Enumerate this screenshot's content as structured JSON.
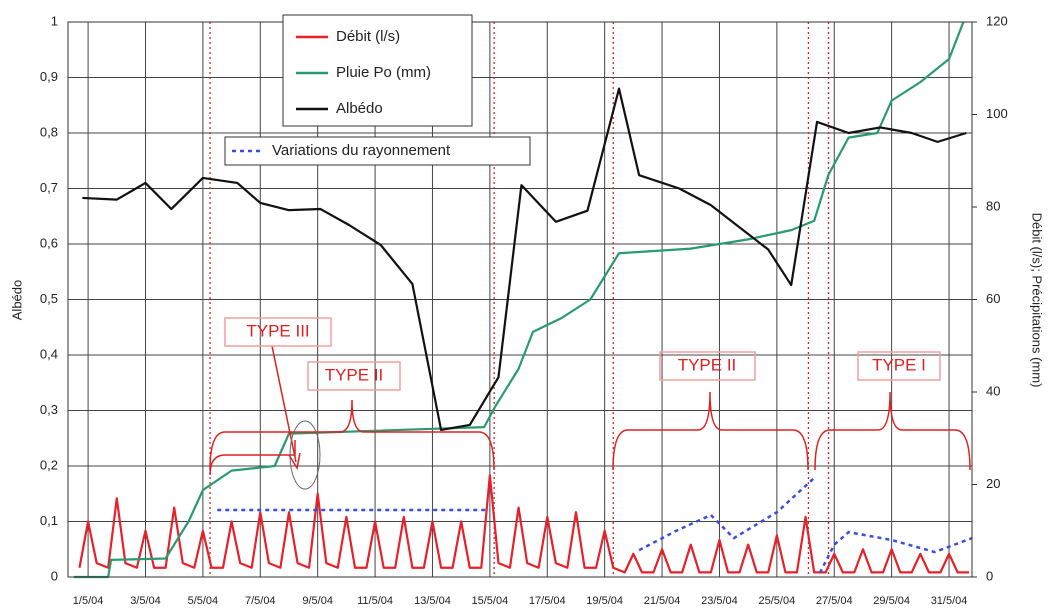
{
  "chart_data": {
    "type": "line",
    "ylabel": "Albédo",
    "y2label": "Débit (l/s); Précipitations (mm)",
    "xlim": [
      0.3,
      31.8
    ],
    "xticks": [
      {
        "value": 1,
        "label": "1/5/04"
      },
      {
        "value": 3,
        "label": "3/5/04"
      },
      {
        "value": 5,
        "label": "5/5/04"
      },
      {
        "value": 7,
        "label": "7/5/04"
      },
      {
        "value": 9,
        "label": "9/5/04"
      },
      {
        "value": 11,
        "label": "11/5/04"
      },
      {
        "value": 13,
        "label": "13/5/04"
      },
      {
        "value": 15,
        "label": "15/5/04"
      },
      {
        "value": 17,
        "label": "17/5/04"
      },
      {
        "value": 19,
        "label": "19/5/04"
      },
      {
        "value": 21,
        "label": "21/5/04"
      },
      {
        "value": 23,
        "label": "23/5/04"
      },
      {
        "value": 25,
        "label": "25/5/04"
      },
      {
        "value": 27,
        "label": "27/5/04"
      },
      {
        "value": 29,
        "label": "29/5/04"
      },
      {
        "value": 31,
        "label": "31/5/04"
      }
    ],
    "ylim": [
      0,
      1
    ],
    "yticks": [
      0,
      {
        "value": 0.1,
        "label": "0,1"
      },
      {
        "value": 0.2,
        "label": "0,2"
      },
      {
        "value": 0.3,
        "label": "0,3"
      },
      {
        "value": 0.4,
        "label": "0,4"
      },
      {
        "value": 0.5,
        "label": "0,5"
      },
      {
        "value": 0.6,
        "label": "0,6"
      },
      {
        "value": 0.7,
        "label": "0,7"
      },
      {
        "value": 0.8,
        "label": "0,8"
      },
      {
        "value": 0.9,
        "label": "0,9"
      },
      1
    ],
    "y2lim": [
      0,
      120
    ],
    "y2ticks": [
      0,
      20,
      40,
      60,
      80,
      100,
      120
    ],
    "grid": true,
    "series": [
      {
        "name": "Débit (l/s)",
        "color": "#e8202a",
        "axis": "y2",
        "x": [
          0.7,
          1.0,
          1.3,
          1.7,
          2.0,
          2.3,
          2.7,
          3.0,
          3.3,
          3.7,
          4.0,
          4.3,
          4.7,
          5.0,
          5.3,
          5.7,
          6.0,
          6.3,
          6.7,
          7.0,
          7.3,
          7.7,
          8.0,
          8.3,
          8.7,
          9.0,
          9.3,
          9.7,
          10.0,
          10.3,
          10.7,
          11.0,
          11.3,
          11.7,
          12.0,
          12.3,
          12.7,
          13.0,
          13.3,
          13.7,
          14.0,
          14.3,
          14.7,
          15.0,
          15.3,
          15.7,
          16.0,
          16.3,
          16.7,
          17.0,
          17.3,
          17.7,
          18.0,
          18.3,
          18.7,
          19.0,
          19.3,
          19.7,
          20.0,
          20.3,
          20.7,
          21.0,
          21.3,
          21.7,
          22.0,
          22.3,
          22.7,
          23.0,
          23.3,
          23.7,
          24.0,
          24.3,
          24.7,
          25.0,
          25.3,
          25.7,
          26.0,
          26.3,
          26.7,
          27.0,
          27.3,
          27.7,
          28.0,
          28.3,
          28.7,
          29.0,
          29.3,
          29.7,
          30.0,
          30.3,
          30.7,
          31.0,
          31.3,
          31.7
        ],
        "values": [
          2,
          12,
          3,
          2,
          17,
          3,
          2,
          10,
          2,
          2,
          15,
          3,
          2,
          10,
          2,
          2,
          12,
          3,
          2,
          14,
          3,
          2,
          14,
          3,
          2,
          18,
          3,
          2,
          13,
          2,
          2,
          12,
          2,
          2,
          13,
          2,
          2,
          12,
          2,
          2,
          12,
          2,
          2,
          22,
          3,
          2,
          15,
          3,
          2,
          13,
          3,
          2,
          14,
          2,
          2,
          10,
          2,
          1,
          5,
          1,
          1,
          6,
          1,
          1,
          7,
          1,
          1,
          8,
          1,
          1,
          7,
          1,
          1,
          9,
          1,
          1,
          13,
          1,
          1,
          5,
          1,
          1,
          6,
          1,
          1,
          6,
          1,
          1,
          5,
          1,
          1,
          5,
          1,
          1
        ]
      },
      {
        "name": "Pluie Po (mm)",
        "color": "#2a9a72",
        "axis": "y2",
        "x": [
          0.5,
          1.7,
          1.8,
          3.7,
          4.5,
          5.0,
          6.0,
          7.5,
          8.0,
          14.8,
          15.2,
          16.0,
          16.5,
          17.5,
          18.5,
          19.5,
          22.0,
          24.0,
          25.5,
          26.3,
          26.8,
          27.5,
          28.5,
          29.0,
          30.0,
          31.0,
          31.5
        ],
        "values": [
          0,
          0,
          3.7,
          4,
          12,
          18.8,
          23,
          24,
          31,
          32.4,
          37,
          45,
          53,
          56,
          60,
          70,
          71,
          73,
          75,
          77,
          87,
          95,
          96,
          103,
          107,
          112,
          120
        ]
      },
      {
        "name": "Albédo",
        "color": "#111111",
        "x": [
          0.8,
          2.0,
          3.0,
          3.9,
          5.0,
          6.2,
          7.0,
          8.0,
          9.1,
          10.1,
          11.2,
          12.3,
          13.3,
          14.3,
          15.3,
          16.1,
          17.3,
          18.4,
          19.5,
          20.2,
          21.6,
          22.7,
          23.7,
          24.7,
          25.5,
          26.4,
          27.5,
          28.6,
          29.7,
          30.6,
          31.6
        ],
        "values": [
          0.683,
          0.68,
          0.71,
          0.663,
          0.719,
          0.71,
          0.674,
          0.661,
          0.663,
          0.634,
          0.598,
          0.528,
          0.265,
          0.274,
          0.36,
          0.706,
          0.64,
          0.66,
          0.88,
          0.724,
          0.7,
          0.67,
          0.63,
          0.59,
          0.526,
          0.82,
          0.8,
          0.81,
          0.8,
          0.784,
          0.8
        ]
      },
      {
        "name": "Variations du rayonnement",
        "color": "#3a4ee0",
        "axis": "y2",
        "dash": true,
        "x": [
          5.5,
          15.0,
          null,
          20.2,
          21.5,
          22.7,
          23.5,
          25.0,
          26.3,
          null,
          26.5,
          27.0,
          27.5,
          29.0,
          30.5,
          31.8
        ],
        "values": [
          14.5,
          14.5,
          null,
          5.8,
          10,
          13.4,
          8.4,
          14,
          21.4,
          null,
          0.9,
          7,
          9.7,
          8,
          5.4,
          8.4
        ]
      }
    ],
    "vlines": [
      5.25,
      15.15,
      19.3,
      26.1,
      26.8
    ],
    "annotations": [
      "TYPE III",
      "TYPE II",
      "TYPE II",
      "TYPE I"
    ]
  }
}
